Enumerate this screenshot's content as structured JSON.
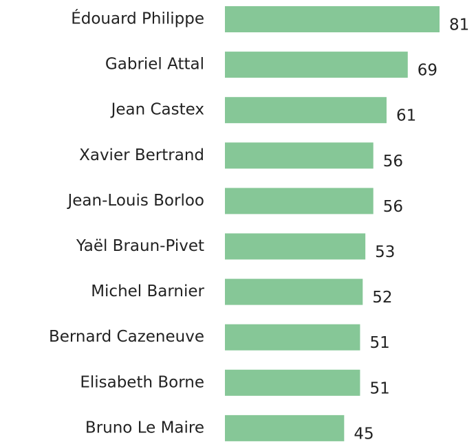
{
  "chart_data": {
    "type": "bar",
    "orientation": "horizontal",
    "categories": [
      "Édouard Philippe",
      "Gabriel Attal",
      "Jean Castex",
      "Xavier Bertrand",
      "Jean-Louis Borloo",
      "Yaël Braun-Pivet",
      "Michel Barnier",
      "Bernard Cazeneuve",
      "Elisabeth Borne",
      "Bruno Le Maire"
    ],
    "values": [
      81,
      69,
      61,
      56,
      56,
      53,
      52,
      51,
      51,
      45
    ],
    "color": "#86c797"
  }
}
